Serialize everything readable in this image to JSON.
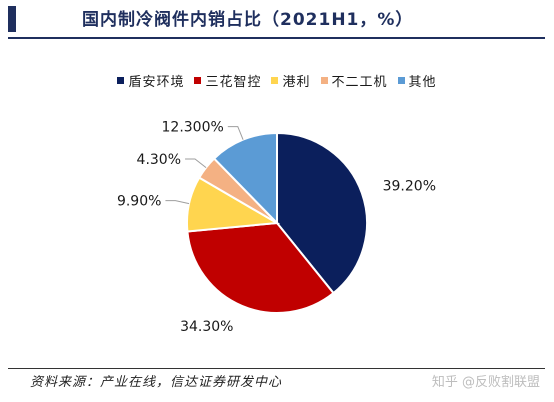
{
  "title": "国内制冷阀件内销占比（2021H1，%）",
  "source": "资料来源：产业在线，信达证券研发中心",
  "watermark": "知乎 @反败割联盟",
  "chart_data": {
    "type": "pie",
    "categories": [
      "盾安环境",
      "三花智控",
      "港利",
      "不二工机",
      "其他"
    ],
    "values": [
      39.2,
      34.3,
      9.9,
      4.3,
      12.3
    ],
    "data_labels": [
      "39.20%",
      "34.30%",
      "9.90%",
      "4.30%",
      "12.300%"
    ],
    "colors": [
      "#0b1f5c",
      "#c00000",
      "#ffd54f",
      "#f4b183",
      "#5b9bd5"
    ],
    "legend_position": "top",
    "start_angle": "12 o'clock",
    "direction": "clockwise"
  }
}
